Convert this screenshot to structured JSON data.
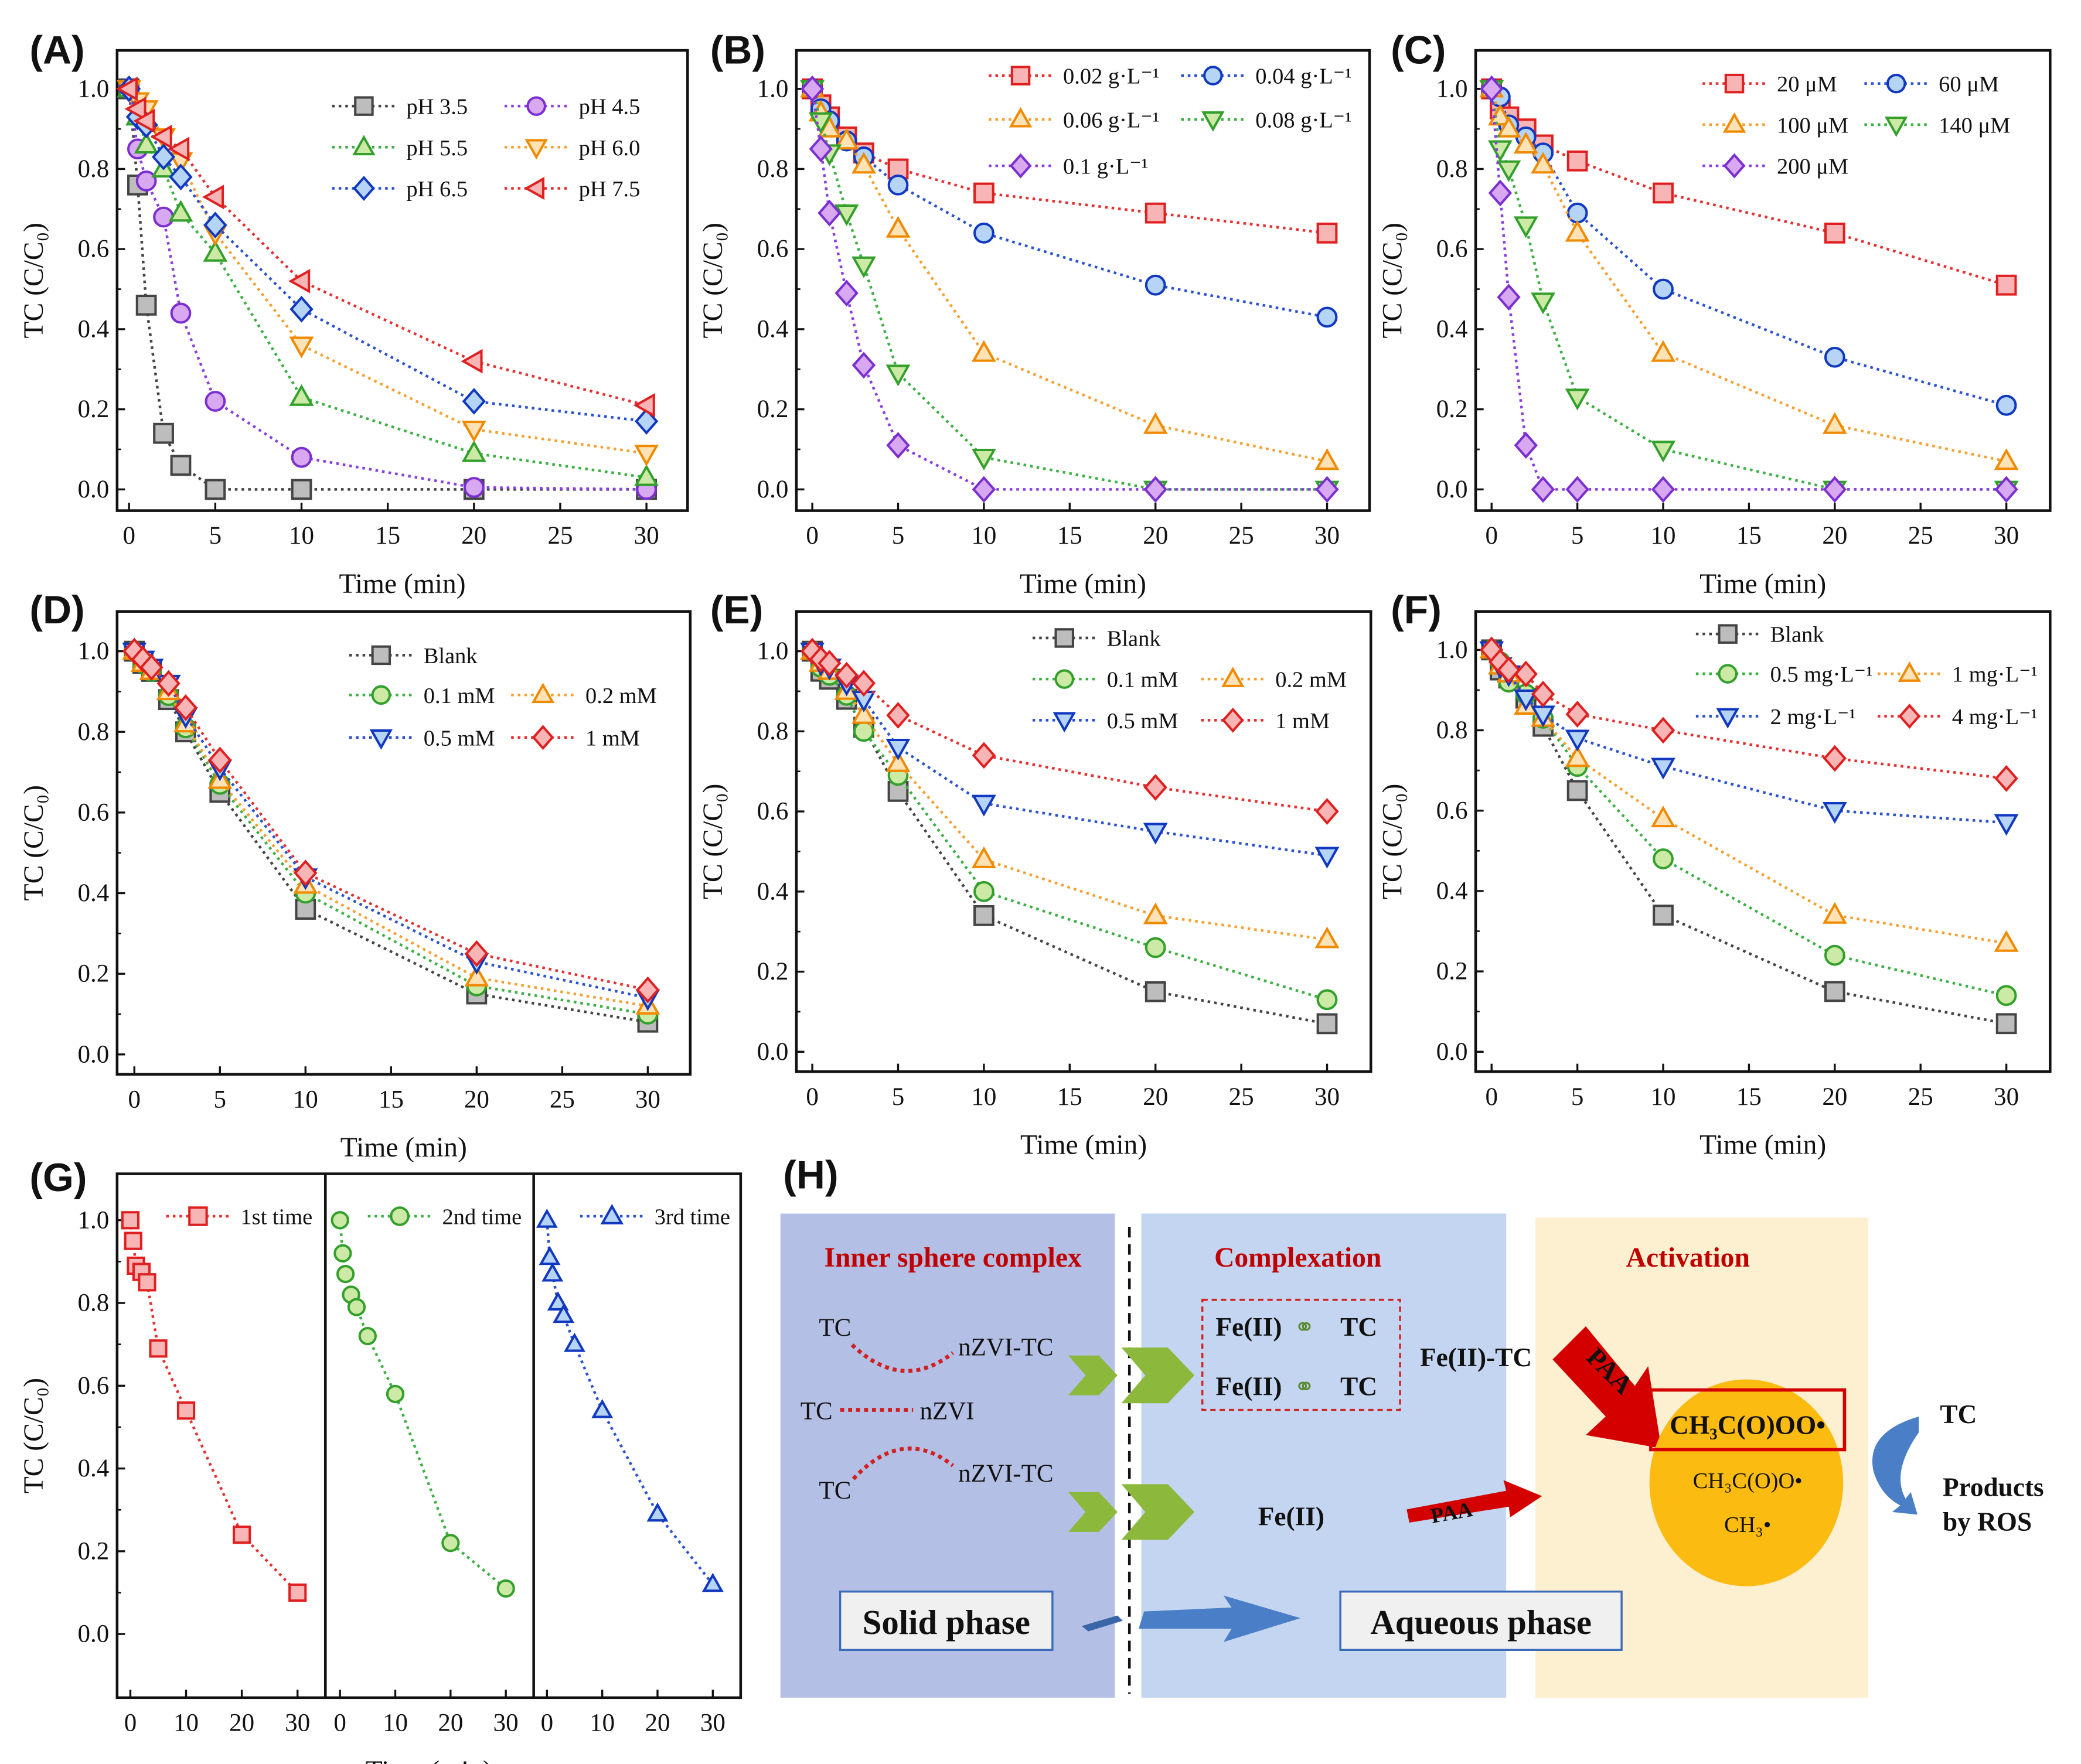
{
  "colors": {
    "gray": {
      "stroke": "#444444",
      "fill": "#bdbdbd",
      "line": "#444444"
    },
    "purple": {
      "stroke": "#7b2fd0",
      "fill": "#d8a8f0",
      "line": "#8a3fe0"
    },
    "green": {
      "stroke": "#33a02c",
      "fill": "#cde9a6",
      "line": "#3cb043"
    },
    "orange": {
      "stroke": "#f08a00",
      "fill": "#ffe2b5",
      "line": "#f5a030"
    },
    "blue": {
      "stroke": "#1038c0",
      "fill": "#b6d4f6",
      "line": "#2a52d0"
    },
    "red": {
      "stroke": "#e02020",
      "fill": "#f7b5b5",
      "line": "#e53030"
    }
  },
  "chart_data": [
    {
      "panel": "(A)",
      "type": "line",
      "xlabel": "Time (min)",
      "ylabel": "TC (C/C₀)",
      "xlim": [
        -1,
        31
      ],
      "ylim": [
        -0.04,
        1.04
      ],
      "xticks": [
        0,
        5,
        10,
        15,
        20,
        25,
        30
      ],
      "yticks": [
        "0.0",
        "0.2",
        "0.4",
        "0.6",
        "0.8",
        "1.0"
      ],
      "legend": "top-right",
      "x": [
        0,
        0.5,
        1,
        2,
        3,
        5,
        10,
        20,
        30
      ],
      "series": [
        {
          "name": "pH 3.5",
          "marker": "square",
          "color": "gray",
          "values": [
            1,
            0.76,
            0.46,
            0.14,
            0.06,
            0,
            0,
            0,
            0
          ]
        },
        {
          "name": "pH 4.5",
          "marker": "circle",
          "color": "purple",
          "values": [
            1,
            0.85,
            0.77,
            0.68,
            0.44,
            0.22,
            0.08,
            0.005,
            0
          ]
        },
        {
          "name": "pH 5.5",
          "marker": "triangle-up",
          "color": "green",
          "values": [
            1,
            0.93,
            0.86,
            0.8,
            0.69,
            0.59,
            0.23,
            0.09,
            0.03
          ]
        },
        {
          "name": "pH 6.0",
          "marker": "triangle-down",
          "color": "orange",
          "values": [
            1,
            0.97,
            0.95,
            0.88,
            0.82,
            0.64,
            0.36,
            0.15,
            0.09
          ]
        },
        {
          "name": "pH 6.5",
          "marker": "diamond",
          "color": "blue",
          "values": [
            1,
            0.93,
            0.91,
            0.83,
            0.78,
            0.66,
            0.45,
            0.22,
            0.17
          ]
        },
        {
          "name": "pH 7.5",
          "marker": "triangle-left",
          "color": "red",
          "values": [
            1,
            0.95,
            0.92,
            0.88,
            0.85,
            0.73,
            0.52,
            0.32,
            0.21
          ]
        }
      ]
    },
    {
      "panel": "(B)",
      "type": "line",
      "xlabel": "Time (min)",
      "ylabel": "TC (C/C₀)",
      "xlim": [
        -1,
        31
      ],
      "ylim": [
        -0.04,
        1.04
      ],
      "xticks": [
        0,
        5,
        10,
        15,
        20,
        25,
        30
      ],
      "yticks": [
        "0.0",
        "0.2",
        "0.4",
        "0.6",
        "0.8",
        "1.0"
      ],
      "legend": "top-right",
      "x": [
        0,
        0.5,
        1,
        2,
        3,
        5,
        10,
        20,
        30
      ],
      "series": [
        {
          "name": "0.02 g·L⁻¹",
          "marker": "square",
          "color": "red",
          "values": [
            1,
            0.96,
            0.93,
            0.88,
            0.84,
            0.8,
            0.74,
            0.69,
            0.64
          ]
        },
        {
          "name": "0.04 g·L⁻¹",
          "marker": "circle",
          "color": "blue",
          "values": [
            1,
            0.95,
            0.92,
            0.87,
            0.83,
            0.76,
            0.64,
            0.51,
            0.43
          ]
        },
        {
          "name": "0.06 g·L⁻¹",
          "marker": "triangle-up",
          "color": "orange",
          "values": [
            1,
            0.94,
            0.9,
            0.87,
            0.81,
            0.65,
            0.34,
            0.16,
            0.07
          ]
        },
        {
          "name": "0.08 g·L⁻¹",
          "marker": "triangle-down",
          "color": "green",
          "values": [
            1,
            0.92,
            0.84,
            0.69,
            0.56,
            0.29,
            0.08,
            0,
            0
          ]
        },
        {
          "name": "0.1 g·L⁻¹",
          "marker": "diamond",
          "color": "purple",
          "values": [
            1,
            0.85,
            0.69,
            0.49,
            0.31,
            0.11,
            0,
            0,
            0
          ]
        }
      ]
    },
    {
      "panel": "(C)",
      "type": "line",
      "xlabel": "Time (min)",
      "ylabel": "TC (C/C₀)",
      "xlim": [
        -1,
        31
      ],
      "ylim": [
        -0.04,
        1.04
      ],
      "xticks": [
        0,
        5,
        10,
        15,
        20,
        25,
        30
      ],
      "yticks": [
        "0.0",
        "0.2",
        "0.4",
        "0.6",
        "0.8",
        "1.0"
      ],
      "legend": "top-right",
      "x": [
        0,
        0.5,
        1,
        2,
        3,
        5,
        10,
        20,
        30
      ],
      "series": [
        {
          "name": "20 μM",
          "marker": "square",
          "color": "red",
          "values": [
            1,
            0.95,
            0.93,
            0.9,
            0.86,
            0.82,
            0.74,
            0.64,
            0.51
          ]
        },
        {
          "name": "60 μM",
          "marker": "circle",
          "color": "blue",
          "values": [
            1,
            0.98,
            0.91,
            0.88,
            0.84,
            0.69,
            0.5,
            0.33,
            0.21
          ]
        },
        {
          "name": "100 μM",
          "marker": "triangle-up",
          "color": "orange",
          "values": [
            1,
            0.93,
            0.9,
            0.86,
            0.81,
            0.64,
            0.34,
            0.16,
            0.07
          ]
        },
        {
          "name": "140 μM",
          "marker": "triangle-down",
          "color": "green",
          "values": [
            1,
            0.85,
            0.8,
            0.66,
            0.47,
            0.23,
            0.1,
            0,
            0
          ]
        },
        {
          "name": "200 μM",
          "marker": "diamond",
          "color": "purple",
          "values": [
            1,
            0.74,
            0.48,
            0.11,
            0,
            0,
            0,
            0,
            0
          ]
        }
      ]
    },
    {
      "panel": "(D)",
      "type": "line",
      "xlabel": "Time (min)",
      "ylabel": "TC (C/C₀)",
      "xlim": [
        -1,
        31
      ],
      "ylim": [
        -0.04,
        1.04
      ],
      "xticks": [
        0,
        5,
        10,
        15,
        20,
        25,
        30
      ],
      "yticks": [
        "0.0",
        "0.2",
        "0.4",
        "0.6",
        "0.8",
        "1.0"
      ],
      "legend": "top-right",
      "x": [
        0,
        0.5,
        1,
        2,
        3,
        5,
        10,
        20,
        30
      ],
      "series": [
        {
          "name": "Blank",
          "marker": "square",
          "color": "gray",
          "values": [
            1,
            0.97,
            0.95,
            0.88,
            0.8,
            0.65,
            0.36,
            0.15,
            0.08
          ]
        },
        {
          "name": "0.1 mM",
          "marker": "circle",
          "color": "green",
          "values": [
            1,
            0.97,
            0.95,
            0.89,
            0.81,
            0.67,
            0.4,
            0.17,
            0.1
          ]
        },
        {
          "name": "0.2 mM",
          "marker": "triangle-up",
          "color": "orange",
          "values": [
            1,
            0.97,
            0.95,
            0.9,
            0.82,
            0.68,
            0.42,
            0.19,
            0.12
          ]
        },
        {
          "name": "0.5 mM",
          "marker": "triangle-down",
          "color": "blue",
          "values": [
            1,
            0.98,
            0.96,
            0.92,
            0.84,
            0.71,
            0.44,
            0.23,
            0.14
          ]
        },
        {
          "name": "1 mM",
          "marker": "diamond",
          "color": "red",
          "values": [
            1,
            0.98,
            0.96,
            0.92,
            0.86,
            0.73,
            0.45,
            0.25,
            0.16
          ]
        }
      ]
    },
    {
      "panel": "(E)",
      "type": "line",
      "xlabel": "Time (min)",
      "ylabel": "TC (C/C₀)",
      "xlim": [
        -1,
        31
      ],
      "ylim": [
        -0.04,
        1.04
      ],
      "xticks": [
        0,
        5,
        10,
        15,
        20,
        25,
        30
      ],
      "yticks": [
        "0.0",
        "0.2",
        "0.4",
        "0.6",
        "0.8",
        "1.0"
      ],
      "legend": "top-right",
      "x": [
        0,
        0.5,
        1,
        2,
        3,
        5,
        10,
        20,
        30
      ],
      "series": [
        {
          "name": "Blank",
          "marker": "square",
          "color": "gray",
          "values": [
            1,
            0.95,
            0.93,
            0.88,
            0.81,
            0.65,
            0.34,
            0.15,
            0.07
          ]
        },
        {
          "name": "0.1 mM",
          "marker": "circle",
          "color": "green",
          "values": [
            1,
            0.96,
            0.94,
            0.89,
            0.8,
            0.69,
            0.4,
            0.26,
            0.13
          ]
        },
        {
          "name": "0.2 mM",
          "marker": "triangle-up",
          "color": "orange",
          "values": [
            1,
            0.97,
            0.95,
            0.9,
            0.84,
            0.72,
            0.48,
            0.34,
            0.28
          ]
        },
        {
          "name": "0.5 mM",
          "marker": "triangle-down",
          "color": "blue",
          "values": [
            1,
            0.97,
            0.96,
            0.92,
            0.88,
            0.76,
            0.62,
            0.55,
            0.49
          ]
        },
        {
          "name": "1 mM",
          "marker": "diamond",
          "color": "red",
          "values": [
            1,
            0.98,
            0.97,
            0.94,
            0.92,
            0.84,
            0.74,
            0.66,
            0.6
          ]
        }
      ]
    },
    {
      "panel": "(F)",
      "type": "line",
      "xlabel": "Time (min)",
      "ylabel": "TC (C/C₀)",
      "xlim": [
        -1,
        31
      ],
      "ylim": [
        -0.04,
        1.04
      ],
      "xticks": [
        0,
        5,
        10,
        15,
        20,
        25,
        30
      ],
      "yticks": [
        "0.0",
        "0.2",
        "0.4",
        "0.6",
        "0.8",
        "1.0"
      ],
      "legend": "top-right",
      "x": [
        0,
        0.5,
        1,
        2,
        3,
        5,
        10,
        20,
        30
      ],
      "series": [
        {
          "name": "Blank",
          "marker": "square",
          "color": "gray",
          "values": [
            1,
            0.95,
            0.93,
            0.88,
            0.81,
            0.65,
            0.34,
            0.15,
            0.07
          ]
        },
        {
          "name": "0.5 mg·L⁻¹",
          "marker": "circle",
          "color": "green",
          "values": [
            1,
            0.97,
            0.92,
            0.89,
            0.83,
            0.71,
            0.48,
            0.24,
            0.14
          ]
        },
        {
          "name": "1 mg·L⁻¹",
          "marker": "triangle-up",
          "color": "orange",
          "values": [
            1,
            0.96,
            0.94,
            0.86,
            0.83,
            0.73,
            0.58,
            0.34,
            0.27
          ]
        },
        {
          "name": "2 mg·L⁻¹",
          "marker": "triangle-down",
          "color": "blue",
          "values": [
            1,
            0.96,
            0.94,
            0.88,
            0.84,
            0.78,
            0.71,
            0.6,
            0.57
          ]
        },
        {
          "name": "4 mg·L⁻¹",
          "marker": "diamond",
          "color": "red",
          "values": [
            1,
            0.97,
            0.95,
            0.94,
            0.89,
            0.84,
            0.8,
            0.73,
            0.68
          ]
        }
      ]
    },
    {
      "panel": "(G)",
      "type": "line",
      "xlabel": "Time (min)",
      "ylabel": "TC (C/C₀)",
      "xlim": [
        -1,
        31
      ],
      "ylim": [
        -0.03,
        1.03
      ],
      "xticks": [
        0,
        10,
        20,
        30
      ],
      "yticks": [
        "0.0",
        "0.2",
        "0.4",
        "0.6",
        "0.8",
        "1.0"
      ],
      "legend": "top",
      "x": [
        0,
        0.5,
        1,
        2,
        3,
        5,
        10,
        20,
        30
      ],
      "series": [
        {
          "name": "1st time",
          "marker": "square",
          "color": "red",
          "values": [
            1,
            0.95,
            0.89,
            0.875,
            0.85,
            0.69,
            0.54,
            0.24,
            0.1
          ]
        },
        {
          "name": "2nd time",
          "marker": "circle",
          "color": "green",
          "values": [
            1,
            0.92,
            0.87,
            0.82,
            0.79,
            0.72,
            0.58,
            0.22,
            0.11
          ]
        },
        {
          "name": "3rd time",
          "marker": "triangle-up",
          "color": "blue",
          "values": [
            1,
            0.91,
            0.87,
            0.8,
            0.77,
            0.7,
            0.54,
            0.29,
            0.12
          ]
        }
      ]
    }
  ],
  "diagram": {
    "panel": "(H)",
    "titles": {
      "inner": "Inner sphere complex",
      "complexation": "Complexation",
      "activation": "Activation"
    },
    "tc": "TC",
    "nzvi_tc": "nZVI-TC",
    "nzvi": "nZVI",
    "fe2": "Fe(II)",
    "fe2_tc": "Fe(II)-TC",
    "paa": "PAA",
    "ros1": "CH₃C(O)OO•",
    "ros2": "CH₃C(O)O•",
    "ros3": "CH₃•",
    "products": "Products",
    "by_ros": "by ROS",
    "solid_phase": "Solid phase",
    "aqueous_phase": "Aqueous phase",
    "colors": {
      "solid_bg": "#b3bfe4",
      "aqueous_bg": "#c3d5f0",
      "activation_bg": "#fdf0d0",
      "title": "#c00000",
      "ros_circle": "#fbbb10",
      "chevron": "#8cb83c",
      "arrow_red": "#d40000",
      "arrow_blue": "#4a7fc8"
    }
  }
}
